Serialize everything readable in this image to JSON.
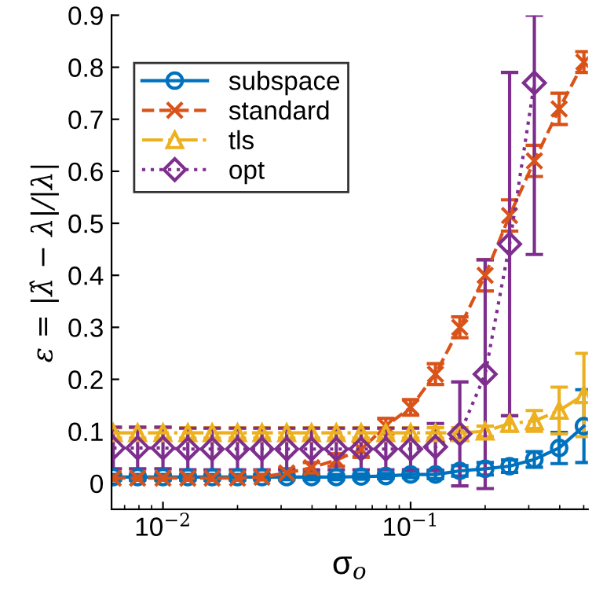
{
  "chart_data": {
    "type": "line",
    "xlabel": "σ$_{o}$",
    "ylabel": "ε = |λ̂ − λ|/|λ|",
    "log": "x",
    "grid": false,
    "legend": "top left",
    "x": [
      0.0063,
      0.0079,
      0.01,
      0.0126,
      0.0158,
      0.02,
      0.0251,
      0.0316,
      0.0398,
      0.0501,
      0.0631,
      0.0794,
      0.1,
      0.126,
      0.158,
      0.2,
      0.251,
      0.316,
      0.398,
      0.501
    ],
    "xlim": [
      0.0062,
      0.52
    ],
    "xticks": [
      {
        "value": 0.01,
        "label": "10$^{−2}$"
      },
      {
        "value": 0.1,
        "label": "10$^{−1}$"
      }
    ],
    "ylim": [
      -0.05,
      0.9
    ],
    "yticks": [
      0,
      0.1,
      0.2,
      0.3,
      0.4,
      0.5,
      0.6,
      0.7,
      0.8,
      0.9
    ],
    "series": [
      {
        "name": "subspace",
        "color": "#0072bd",
        "marker": "circle",
        "line_style": "solid",
        "values": [
          0.012,
          0.012,
          0.012,
          0.012,
          0.012,
          0.012,
          0.012,
          0.012,
          0.012,
          0.012,
          0.013,
          0.014,
          0.017,
          0.017,
          0.024,
          0.028,
          0.033,
          0.046,
          0.068,
          0.11
        ],
        "errors": [
          0.005,
          0.005,
          0.005,
          0.005,
          0.005,
          0.005,
          0.005,
          0.005,
          0.005,
          0.005,
          0.005,
          0.005,
          0.006,
          0.008,
          0.01,
          0.012,
          0.012,
          0.015,
          0.03,
          0.07
        ]
      },
      {
        "name": "standard",
        "color": "#d95319",
        "marker": "cross",
        "line_style": "dashed",
        "values": [
          0.01,
          0.01,
          0.01,
          0.01,
          0.01,
          0.01,
          0.012,
          0.02,
          0.03,
          0.045,
          0.065,
          0.11,
          0.146,
          0.21,
          0.3,
          0.4,
          0.515,
          0.62,
          0.72,
          0.81
        ],
        "errors": [
          0.004,
          0.004,
          0.004,
          0.004,
          0.004,
          0.004,
          0.005,
          0.008,
          0.01,
          0.012,
          0.015,
          0.015,
          0.015,
          0.02,
          0.02,
          0.03,
          0.03,
          0.03,
          0.03,
          0.02
        ]
      },
      {
        "name": "tls",
        "color": "#edb120",
        "marker": "triangle",
        "line_style": "dashdot",
        "values": [
          0.097,
          0.097,
          0.097,
          0.097,
          0.097,
          0.097,
          0.097,
          0.097,
          0.097,
          0.097,
          0.097,
          0.097,
          0.097,
          0.097,
          0.097,
          0.1,
          0.115,
          0.12,
          0.14,
          0.17
        ],
        "errors": [
          0.01,
          0.01,
          0.01,
          0.01,
          0.01,
          0.01,
          0.01,
          0.01,
          0.01,
          0.01,
          0.01,
          0.01,
          0.01,
          0.01,
          0.01,
          0.01,
          0.015,
          0.02,
          0.045,
          0.08
        ]
      },
      {
        "name": "opt",
        "color": "#7e2f8e",
        "marker": "diamond",
        "line_style": "dotted",
        "values": [
          0.068,
          0.068,
          0.068,
          0.066,
          0.066,
          0.066,
          0.066,
          0.066,
          0.066,
          0.066,
          0.066,
          0.066,
          0.066,
          0.07,
          0.095,
          0.21,
          0.46,
          0.77,
          null,
          null
        ],
        "errors": [
          0.04,
          0.04,
          0.04,
          0.04,
          0.04,
          0.04,
          0.04,
          0.04,
          0.04,
          0.04,
          0.04,
          0.04,
          0.04,
          0.045,
          0.1,
          0.22,
          0.33,
          [
            0.44,
            0.9
          ],
          null,
          null
        ]
      }
    ]
  }
}
